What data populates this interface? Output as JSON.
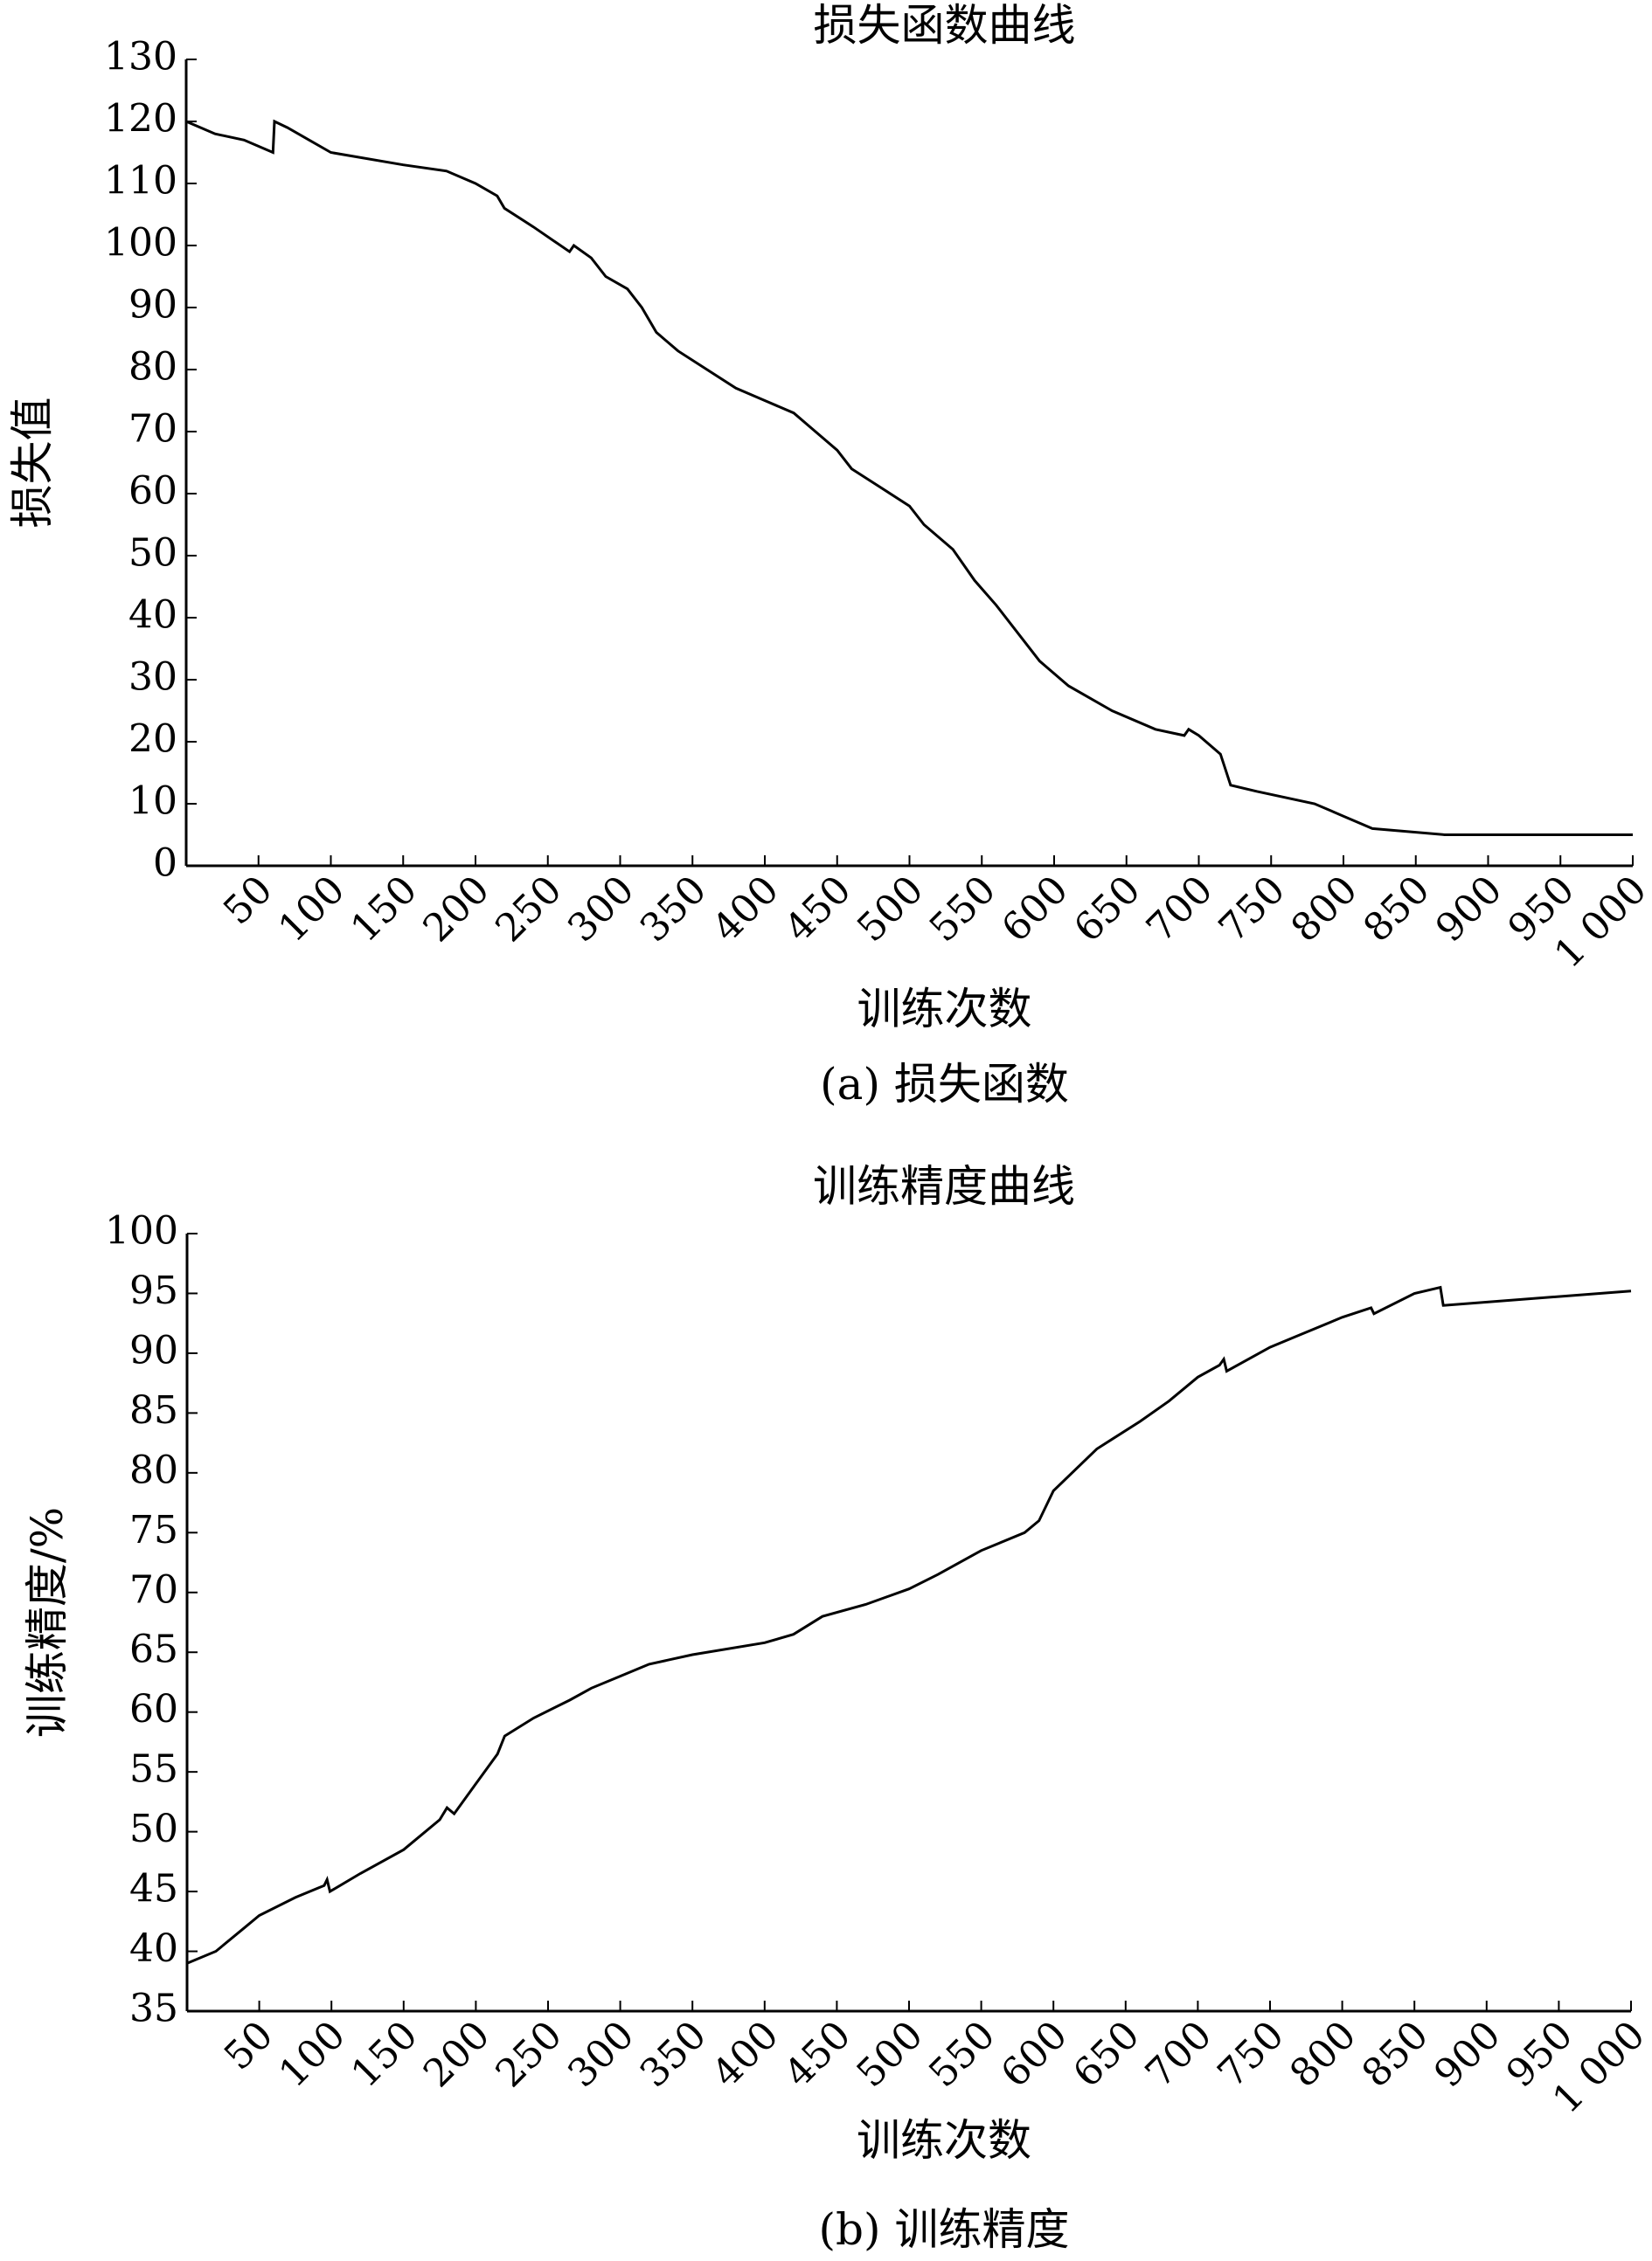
{
  "chart_data": [
    {
      "type": "line",
      "title": "损失函数曲线",
      "x_label": "训练次数",
      "y_label": "损失值",
      "caption": "(a) 损失函数",
      "color": "#000000",
      "x": [
        0,
        10,
        20,
        40,
        60,
        61,
        70,
        85,
        100,
        150,
        180,
        200,
        215,
        220,
        240,
        265,
        268,
        280,
        290,
        305,
        315,
        325,
        340,
        360,
        380,
        400,
        420,
        430,
        450,
        460,
        480,
        500,
        510,
        530,
        545,
        560,
        580,
        590,
        610,
        640,
        670,
        690,
        693,
        700,
        715,
        722,
        740,
        780,
        800,
        820,
        870,
        1000
      ],
      "values": [
        120,
        119,
        118,
        117,
        115,
        120,
        119,
        117,
        115,
        113,
        112,
        110,
        108,
        106,
        103,
        99,
        100,
        98,
        95,
        93,
        90,
        86,
        83,
        80,
        77,
        75,
        73,
        71,
        67,
        64,
        61,
        58,
        55,
        51,
        46,
        42,
        36,
        33,
        29,
        25,
        22,
        21,
        22,
        21,
        18,
        13,
        12,
        10,
        8,
        6,
        5,
        5
      ],
      "xlim": [
        0,
        1000
      ],
      "ylim": [
        0,
        130
      ],
      "xticks": [
        50,
        100,
        150,
        200,
        250,
        300,
        350,
        400,
        450,
        500,
        550,
        600,
        650,
        700,
        750,
        800,
        850,
        900,
        950,
        {
          "value": 1000,
          "label": "1 000"
        }
      ],
      "yticks": [
        0,
        10,
        20,
        30,
        40,
        50,
        60,
        70,
        80,
        90,
        100,
        110,
        120,
        130
      ]
    },
    {
      "type": "line",
      "title": "训练精度曲线",
      "x_label": "训练次数",
      "y_label": "训练精度/%",
      "caption": "(b) 训练精度",
      "color": "#000000",
      "x": [
        0,
        20,
        40,
        50,
        75,
        95,
        97,
        99,
        120,
        150,
        175,
        180,
        185,
        200,
        215,
        220,
        240,
        265,
        280,
        300,
        320,
        350,
        400,
        420,
        440,
        470,
        500,
        520,
        550,
        580,
        590,
        600,
        630,
        660,
        680,
        700,
        715,
        718,
        720,
        750,
        770,
        800,
        820,
        822,
        850,
        868,
        870,
        1000
      ],
      "values": [
        39,
        40,
        42,
        43,
        44.5,
        45.5,
        46,
        45,
        46.5,
        48.5,
        51,
        52,
        51.5,
        54,
        56.5,
        58,
        59.5,
        61,
        62,
        63,
        64,
        64.8,
        65.8,
        66.5,
        68,
        69,
        70.3,
        71.5,
        73.5,
        75,
        76,
        78.5,
        82,
        84.3,
        86,
        88,
        89,
        89.5,
        88.5,
        90.5,
        91.5,
        93,
        93.8,
        93.3,
        95,
        95.5,
        94,
        95.2
      ],
      "xlim": [
        0,
        1000
      ],
      "ylim": [
        35,
        100
      ],
      "xticks": [
        50,
        100,
        150,
        200,
        250,
        300,
        350,
        400,
        450,
        500,
        550,
        600,
        650,
        700,
        750,
        800,
        850,
        900,
        950,
        {
          "value": 1000,
          "label": "1 000"
        }
      ],
      "yticks": [
        35,
        40,
        45,
        50,
        55,
        60,
        65,
        70,
        75,
        80,
        85,
        90,
        95,
        100
      ]
    }
  ]
}
